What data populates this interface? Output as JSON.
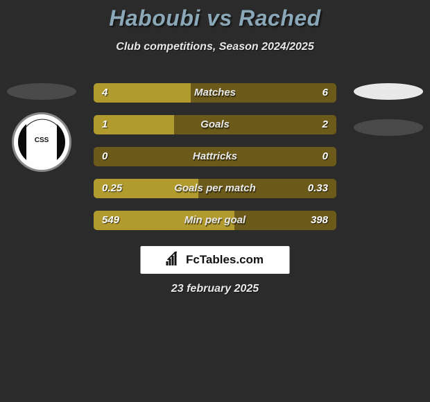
{
  "title": "Haboubi vs Rached",
  "subtitle": "Club competitions, Season 2024/2025",
  "colors": {
    "background": "#2b2b2b",
    "title": "#8aa8b8",
    "bar_fill": "#b19b2e",
    "bar_track": "#6b5a1a",
    "left_ellipse": "#4a4a4a",
    "right_ellipse_1": "#e8e8e8",
    "right_ellipse_2": "#4a4a4a",
    "text": "#e8e8e8"
  },
  "bars": [
    {
      "label": "Matches",
      "left": "4",
      "right": "6",
      "fill_pct": 40
    },
    {
      "label": "Goals",
      "left": "1",
      "right": "2",
      "fill_pct": 33
    },
    {
      "label": "Hattricks",
      "left": "0",
      "right": "0",
      "fill_pct": 0
    },
    {
      "label": "Goals per match",
      "left": "0.25",
      "right": "0.33",
      "fill_pct": 43
    },
    {
      "label": "Min per goal",
      "left": "549",
      "right": "398",
      "fill_pct": 58
    }
  ],
  "left_badge": {
    "label": "CSS",
    "arc_text": "—"
  },
  "footer_logo": "FcTables.com",
  "footer_date": "23 february 2025"
}
